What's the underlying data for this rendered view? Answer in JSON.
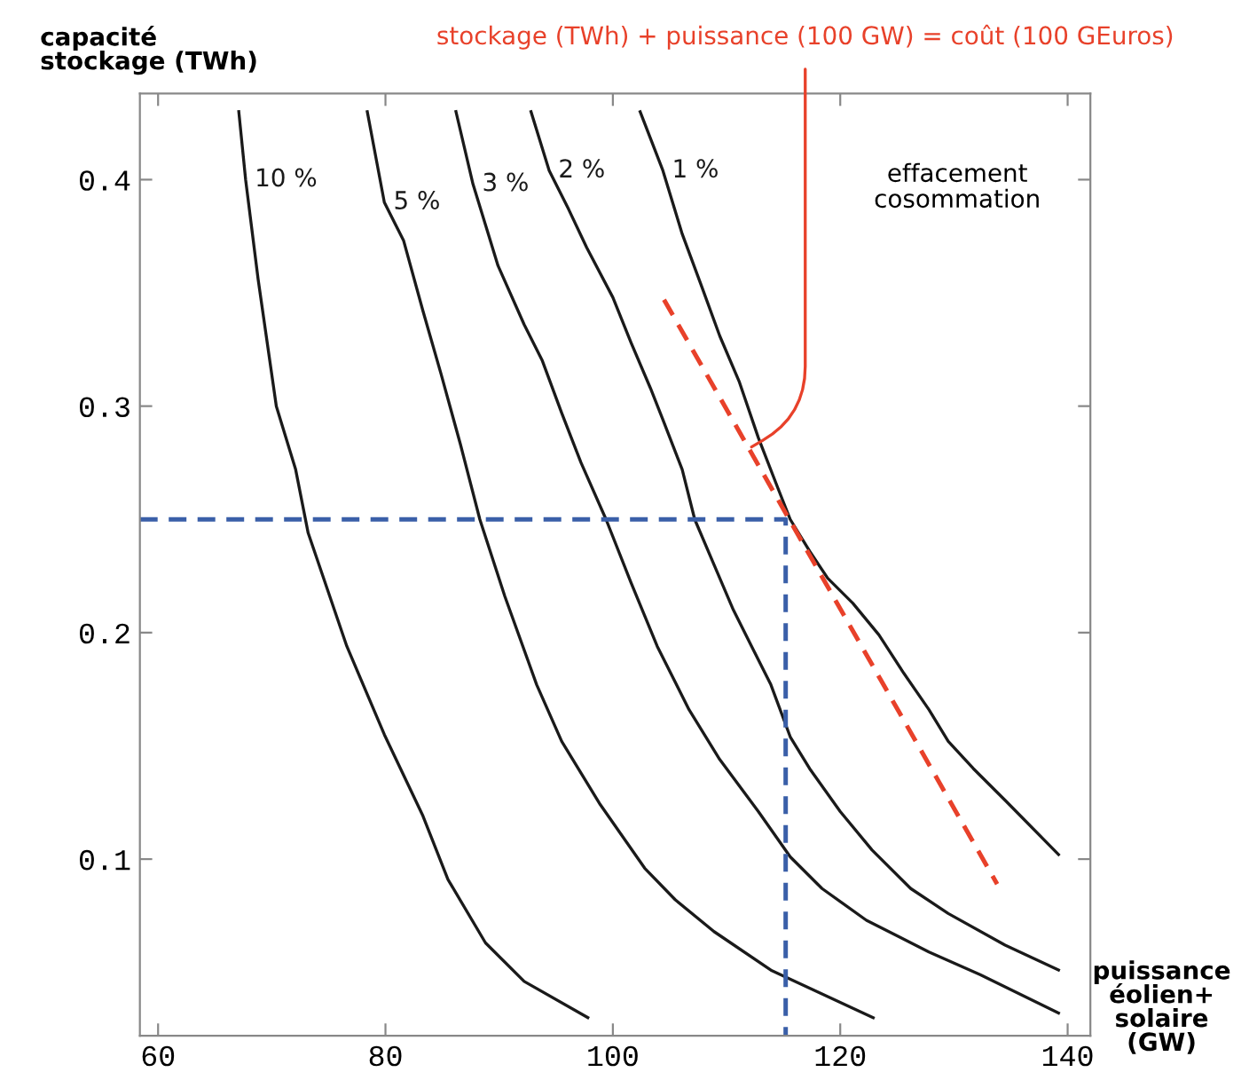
{
  "chart_data": {
    "type": "line",
    "ylabel": "capacité\nstockage (TWh)",
    "xlabel": "puissance\néolien+\nsolaire\n(GW)",
    "annotations": [
      {
        "text": "stockage (TWh) + puissance (100 GW) = coût (100 GEuros)",
        "x": 112.2,
        "y": 0.282
      },
      "effacement\ncosommation"
    ],
    "xlim": [
      58.4,
      142.0
    ],
    "ylim": [
      0.022,
      0.438
    ],
    "xticks": [
      60,
      80,
      100,
      120,
      140
    ],
    "yticks": [
      0.1,
      0.2,
      0.3,
      0.4
    ],
    "grid": false,
    "legend": false,
    "marker": "none",
    "series": [
      {
        "name": "10 %",
        "color": "#1a1a1a",
        "line_style": "solid",
        "x": [
          67.1,
          67.7,
          68.8,
          70.4,
          72.1,
          73.2,
          76.6,
          79.9,
          83.3,
          85.5,
          88.8,
          92.2,
          97.8
        ],
        "values": [
          0.43,
          0.4,
          0.356,
          0.3,
          0.272,
          0.244,
          0.194,
          0.155,
          0.119,
          0.091,
          0.063,
          0.046,
          0.03
        ]
      },
      {
        "name": "5 %",
        "color": "#1a1a1a",
        "line_style": "solid",
        "x": [
          78.4,
          79.9,
          81.6,
          83.3,
          84.9,
          86.6,
          88.3,
          90.5,
          93.3,
          95.5,
          98.9,
          102.8,
          105.5,
          108.9,
          113.9,
          122.9
        ],
        "values": [
          0.43,
          0.39,
          0.373,
          0.342,
          0.314,
          0.283,
          0.25,
          0.216,
          0.177,
          0.152,
          0.124,
          0.096,
          0.082,
          0.068,
          0.051,
          0.03
        ]
      },
      {
        "name": "3 %",
        "color": "#1a1a1a",
        "line_style": "solid",
        "x": [
          86.2,
          87.7,
          89.9,
          92.2,
          93.8,
          95.5,
          97.2,
          99.4,
          101.6,
          103.9,
          106.7,
          109.4,
          112.8,
          115.6,
          118.4,
          122.3,
          127.8,
          132.3,
          139.2
        ],
        "values": [
          0.43,
          0.398,
          0.362,
          0.336,
          0.32,
          0.297,
          0.275,
          0.25,
          0.222,
          0.194,
          0.166,
          0.144,
          0.121,
          0.101,
          0.087,
          0.073,
          0.059,
          0.049,
          0.032
        ]
      },
      {
        "name": "2 %",
        "color": "#1a1a1a",
        "line_style": "solid",
        "x": [
          92.8,
          94.4,
          96.1,
          97.7,
          100.0,
          101.6,
          103.3,
          104.4,
          106.1,
          107.2,
          108.9,
          110.6,
          112.2,
          113.9,
          115.6,
          117.3,
          120.0,
          122.8,
          126.2,
          129.5,
          134.5,
          139.2
        ],
        "values": [
          0.43,
          0.404,
          0.387,
          0.37,
          0.348,
          0.328,
          0.308,
          0.294,
          0.272,
          0.25,
          0.23,
          0.21,
          0.194,
          0.177,
          0.154,
          0.14,
          0.121,
          0.104,
          0.087,
          0.076,
          0.062,
          0.051
        ]
      },
      {
        "name": "1 %",
        "color": "#1a1a1a",
        "line_style": "solid",
        "x": [
          102.4,
          104.4,
          106.1,
          107.8,
          109.4,
          111.1,
          112.8,
          114.5,
          115.6,
          117.3,
          118.9,
          121.1,
          123.4,
          125.6,
          127.8,
          129.5,
          131.7,
          134.5,
          139.2
        ],
        "values": [
          0.43,
          0.404,
          0.376,
          0.353,
          0.331,
          0.311,
          0.286,
          0.264,
          0.25,
          0.236,
          0.224,
          0.213,
          0.199,
          0.182,
          0.166,
          0.152,
          0.14,
          0.126,
          0.102
        ]
      },
      {
        "color": "#e8412a",
        "line_style": "dashed",
        "x": [
          104.5,
          133.8
        ],
        "values": [
          0.347,
          0.089
        ]
      },
      {
        "color": "#3a5fa8",
        "line_style": "dashed",
        "x": [
          58.4,
          115.2,
          115.2
        ],
        "values": [
          0.25,
          0.25,
          0.022
        ]
      }
    ]
  }
}
